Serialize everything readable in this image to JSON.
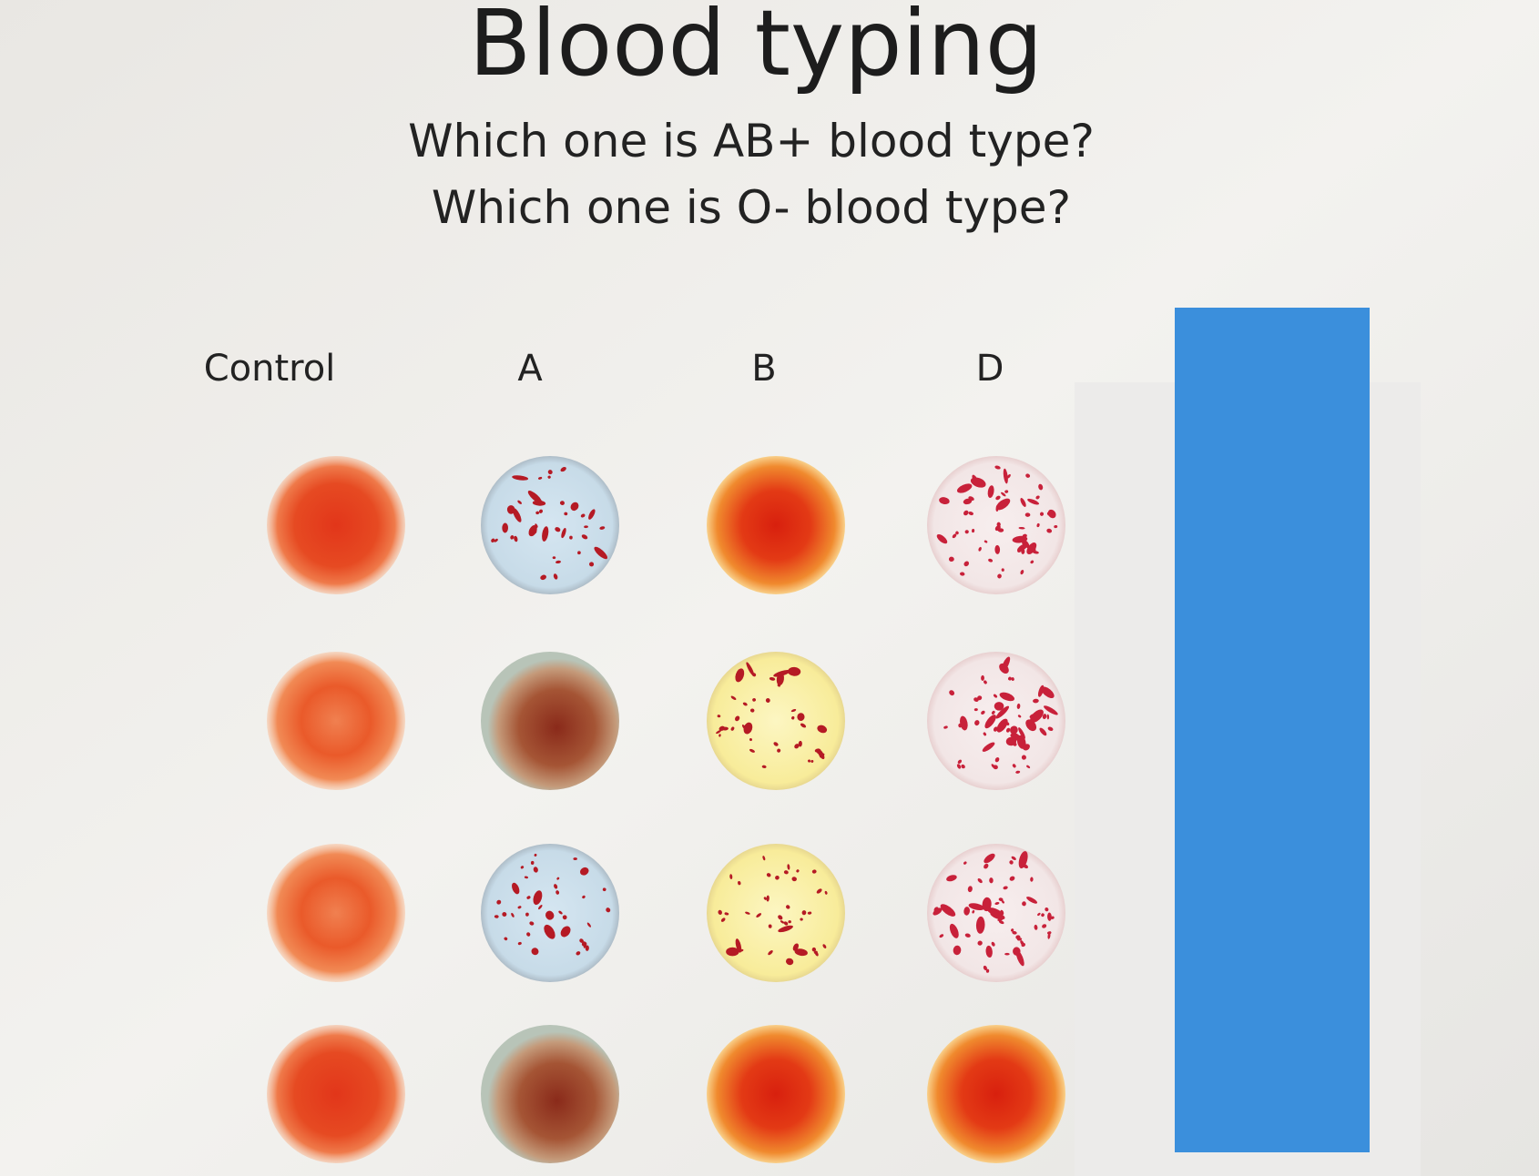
{
  "title": "Blood typing",
  "questions": [
    "Which one is AB+ blood type?",
    "Which one is O- blood type?"
  ],
  "columns": [
    "Control",
    "A",
    "B",
    "D"
  ]
}
